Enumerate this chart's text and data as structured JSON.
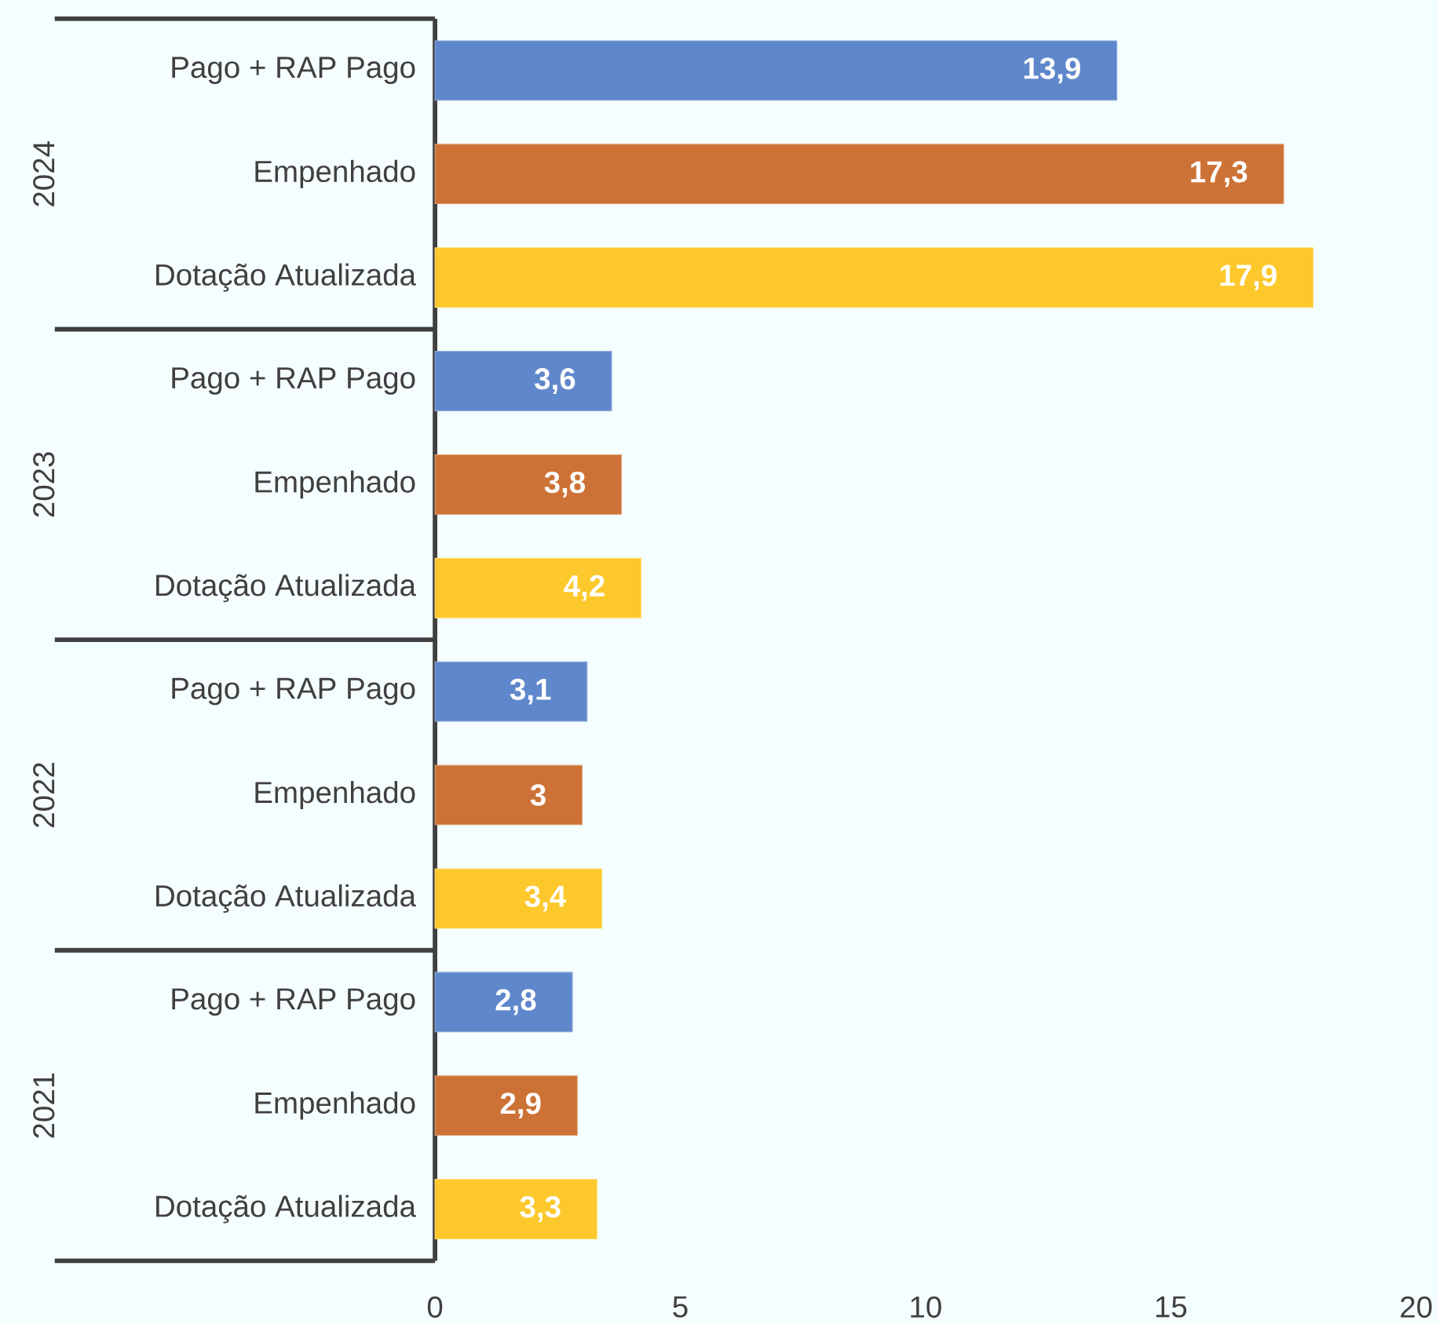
{
  "chart_data": {
    "type": "bar",
    "orientation": "horizontal",
    "categories": [
      "Pago + RAP Pago",
      "Empenhado",
      "Dotação Atualizada",
      "Pago + RAP Pago",
      "Empenhado",
      "Dotação Atualizada",
      "Pago + RAP Pago",
      "Empenhado",
      "Dotação Atualizada",
      "Pago + RAP Pago",
      "Empenhado",
      "Dotação Atualizada"
    ],
    "values": [
      13.9,
      17.3,
      17.9,
      3.6,
      3.8,
      4.2,
      3.1,
      3,
      3.4,
      2.8,
      2.9,
      3.3
    ],
    "value_labels": [
      "13,9",
      "17,3",
      "17,9",
      "3,6",
      "3,8",
      "4,2",
      "3,1",
      "3",
      "3,4",
      "2,8",
      "2,9",
      "3,3"
    ],
    "colors": [
      "#5f87cb",
      "#cd7236",
      "#fdc82b",
      "#5f87cb",
      "#cd7236",
      "#fdc82b",
      "#5f87cb",
      "#cd7236",
      "#fdc82b",
      "#5f87cb",
      "#cd7236",
      "#fdc82b"
    ],
    "xlim": [
      0,
      20
    ],
    "xticks": [
      0,
      5,
      10,
      15,
      20
    ],
    "annotations": [
      "2024",
      "2023",
      "2022",
      "2021"
    ],
    "grid": false
  }
}
